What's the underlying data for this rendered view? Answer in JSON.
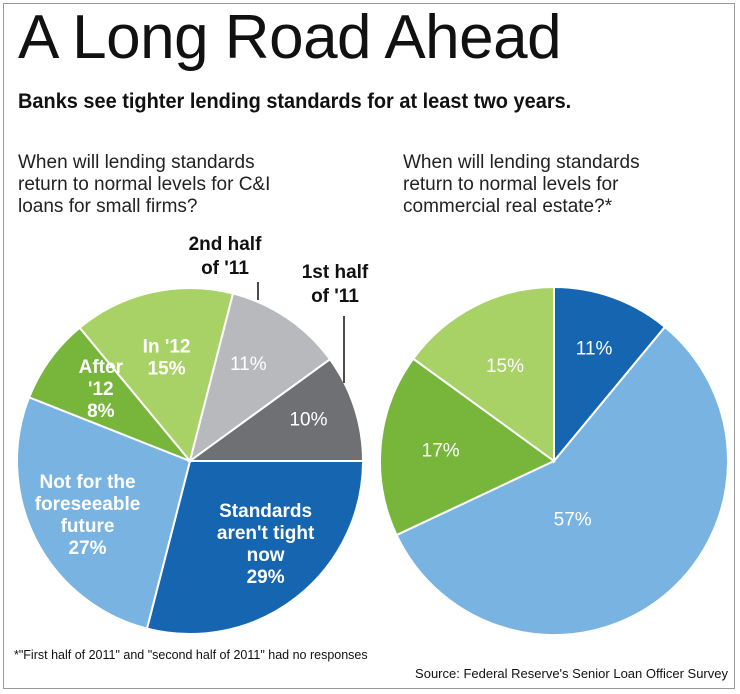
{
  "title": "A Long Road Ahead",
  "subtitle": "Banks see tighter lending standards for at least two years.",
  "footnote": "*\"First half of 2011\" and \"second half of 2011\" had no responses",
  "source": "Source: Federal Reserve's Senior Loan Officer Survey",
  "colors": {
    "dark_blue": "#1565b1",
    "light_blue": "#79b3e2",
    "dark_gray": "#6e7073",
    "light_gray": "#b7b9bc",
    "light_green": "#a9d266",
    "dark_green": "#77b63b"
  },
  "chart_data": [
    {
      "type": "pie",
      "title_lines": [
        "When will lending standards",
        "return to normal levels for C&I",
        "loans for small firms?"
      ],
      "units": "%",
      "slices": [
        {
          "label_lines": [
            "Standards",
            "aren't tight",
            "now"
          ],
          "value": 29,
          "value_text": "29%",
          "color": "#1565b1",
          "text_color": "#ffffff"
        },
        {
          "label_lines": [
            "Not for the",
            "foreseeable",
            "future"
          ],
          "value": 27,
          "value_text": "27%",
          "color": "#79b3e2",
          "text_color": "#ffffff"
        },
        {
          "label_lines": [
            "After",
            "'12"
          ],
          "value": 8,
          "value_text": "8%",
          "color": "#77b63b",
          "text_color": "#ffffff"
        },
        {
          "label_lines": [
            "In '12"
          ],
          "value": 15,
          "value_text": "15%",
          "color": "#a9d266",
          "text_color": "#ffffff"
        },
        {
          "label_lines": [
            "2nd half",
            "of '11"
          ],
          "value": 11,
          "value_text": "11%",
          "color": "#b7b9bc",
          "text_color": "#ffffff",
          "outside_label": true
        },
        {
          "label_lines": [
            "1st half",
            "of '11"
          ],
          "value": 10,
          "value_text": "10%",
          "color": "#6e7073",
          "text_color": "#ffffff",
          "outside_label": true
        }
      ]
    },
    {
      "type": "pie",
      "title_lines": [
        "When will lending standards",
        "return to normal levels for",
        "commercial real estate?*"
      ],
      "units": "%",
      "slices": [
        {
          "label_lines": [],
          "value": 57,
          "value_text": "57%",
          "color": "#79b3e2",
          "text_color": "#ffffff"
        },
        {
          "label_lines": [],
          "value": 17,
          "value_text": "17%",
          "color": "#77b63b",
          "text_color": "#ffffff"
        },
        {
          "label_lines": [],
          "value": 15,
          "value_text": "15%",
          "color": "#a9d266",
          "text_color": "#ffffff"
        },
        {
          "label_lines": [],
          "value": 11,
          "value_text": "11%",
          "color": "#1565b1",
          "text_color": "#ffffff"
        }
      ]
    }
  ]
}
